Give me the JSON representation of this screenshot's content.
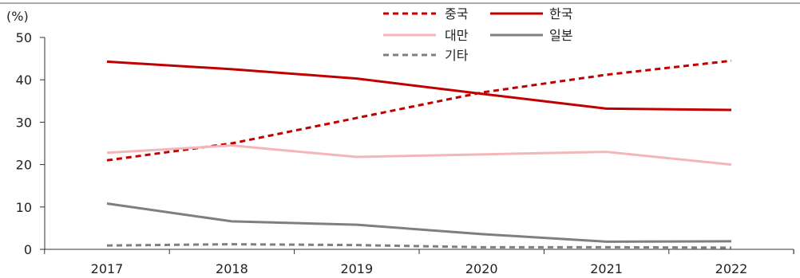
{
  "chart_data": {
    "type": "line",
    "title": "",
    "xlabel": "",
    "ylabel": "(%)",
    "x": [
      "2017",
      "2018",
      "2019",
      "2020",
      "2021",
      "2022"
    ],
    "ylim": [
      0,
      50
    ],
    "yticks": [
      0,
      10,
      20,
      30,
      40,
      50
    ],
    "grid": false,
    "legend_position": "top-center",
    "series": [
      {
        "name": "중국",
        "color": "#c00000",
        "dash": "dashed",
        "values": [
          21.0,
          25.0,
          31.0,
          37.0,
          41.2,
          44.5
        ]
      },
      {
        "name": "한국",
        "color": "#c00000",
        "dash": "solid",
        "values": [
          44.3,
          42.5,
          40.3,
          36.7,
          33.2,
          32.9
        ]
      },
      {
        "name": "대만",
        "color": "#f4b6b8",
        "dash": "solid",
        "values": [
          22.8,
          24.5,
          21.8,
          22.4,
          23.0,
          20.0
        ]
      },
      {
        "name": "일본",
        "color": "#7f7f7f",
        "dash": "solid",
        "values": [
          10.8,
          6.6,
          5.8,
          3.6,
          1.8,
          1.9
        ]
      },
      {
        "name": "기타",
        "color": "#7f7f7f",
        "dash": "dashed",
        "values": [
          0.9,
          1.2,
          1.0,
          0.5,
          0.5,
          0.4
        ]
      }
    ]
  }
}
